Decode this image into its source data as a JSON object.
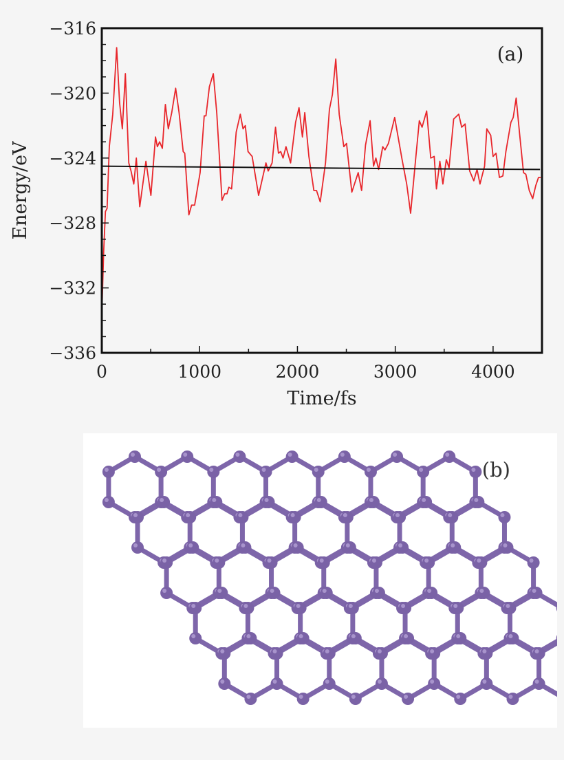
{
  "chart_data": {
    "type": "line",
    "panel_label": "(a)",
    "xlabel": "Time/fs",
    "ylabel": "Energy/eV",
    "xlim": [
      0,
      4500
    ],
    "ylim": [
      -336,
      -316
    ],
    "xticks": [
      0,
      1000,
      2000,
      3000,
      4000
    ],
    "xtick_labels": [
      "0",
      "1000",
      "2000",
      "3000",
      "4000"
    ],
    "yticks": [
      -316,
      -320,
      -324,
      -328,
      -332,
      -336
    ],
    "ytick_labels": [
      "−316",
      "−320",
      "−324",
      "−328",
      "−332",
      "−336"
    ],
    "grid": false,
    "series": [
      {
        "color": "#e8262b",
        "points": [
          [
            0,
            -333.7
          ],
          [
            19,
            -329.8
          ],
          [
            37,
            -327.3
          ],
          [
            54,
            -327.1
          ],
          [
            77,
            -323.3
          ],
          [
            112,
            -321.3
          ],
          [
            152,
            -317.2
          ],
          [
            182,
            -320.6
          ],
          [
            210,
            -322.2
          ],
          [
            241,
            -318.8
          ],
          [
            276,
            -324.3
          ],
          [
            299,
            -324.8
          ],
          [
            327,
            -325.6
          ],
          [
            353,
            -324.0
          ],
          [
            388,
            -327.0
          ],
          [
            451,
            -324.2
          ],
          [
            502,
            -326.3
          ],
          [
            549,
            -322.7
          ],
          [
            568,
            -323.3
          ],
          [
            591,
            -323.0
          ],
          [
            619,
            -323.4
          ],
          [
            650,
            -320.7
          ],
          [
            680,
            -322.2
          ],
          [
            715,
            -321.2
          ],
          [
            755,
            -319.7
          ],
          [
            790,
            -321.2
          ],
          [
            832,
            -323.6
          ],
          [
            848,
            -323.7
          ],
          [
            890,
            -327.5
          ],
          [
            918,
            -326.9
          ],
          [
            949,
            -326.9
          ],
          [
            1005,
            -324.9
          ],
          [
            1047,
            -321.4
          ],
          [
            1065,
            -321.4
          ],
          [
            1100,
            -319.6
          ],
          [
            1140,
            -318.8
          ],
          [
            1175,
            -321.2
          ],
          [
            1229,
            -326.6
          ],
          [
            1257,
            -326.2
          ],
          [
            1280,
            -326.2
          ],
          [
            1299,
            -325.8
          ],
          [
            1327,
            -325.9
          ],
          [
            1374,
            -322.4
          ],
          [
            1416,
            -321.3
          ],
          [
            1444,
            -322.2
          ],
          [
            1467,
            -322.0
          ],
          [
            1495,
            -323.6
          ],
          [
            1537,
            -323.9
          ],
          [
            1603,
            -326.3
          ],
          [
            1678,
            -324.3
          ],
          [
            1701,
            -324.8
          ],
          [
            1741,
            -324.3
          ],
          [
            1776,
            -322.1
          ],
          [
            1806,
            -323.7
          ],
          [
            1829,
            -323.6
          ],
          [
            1853,
            -324.0
          ],
          [
            1883,
            -323.3
          ],
          [
            1930,
            -324.3
          ],
          [
            1981,
            -321.8
          ],
          [
            2016,
            -320.9
          ],
          [
            2051,
            -322.7
          ],
          [
            2075,
            -321.2
          ],
          [
            2117,
            -323.9
          ],
          [
            2168,
            -326.0
          ],
          [
            2195,
            -326.0
          ],
          [
            2233,
            -326.7
          ],
          [
            2287,
            -324.3
          ],
          [
            2327,
            -321.0
          ],
          [
            2357,
            -320.1
          ],
          [
            2392,
            -317.9
          ],
          [
            2427,
            -321.3
          ],
          [
            2474,
            -323.3
          ],
          [
            2502,
            -323.1
          ],
          [
            2556,
            -326.1
          ],
          [
            2621,
            -324.9
          ],
          [
            2656,
            -326.0
          ],
          [
            2696,
            -323.2
          ],
          [
            2743,
            -321.7
          ],
          [
            2778,
            -324.5
          ],
          [
            2802,
            -324.0
          ],
          [
            2830,
            -324.7
          ],
          [
            2872,
            -323.3
          ],
          [
            2895,
            -323.5
          ],
          [
            2930,
            -323.1
          ],
          [
            2994,
            -321.5
          ],
          [
            3070,
            -324.1
          ],
          [
            3117,
            -325.6
          ],
          [
            3157,
            -327.4
          ],
          [
            3211,
            -323.9
          ],
          [
            3246,
            -321.7
          ],
          [
            3274,
            -322.1
          ],
          [
            3321,
            -321.1
          ],
          [
            3363,
            -324.0
          ],
          [
            3398,
            -323.9
          ],
          [
            3421,
            -325.9
          ],
          [
            3456,
            -324.2
          ],
          [
            3487,
            -325.6
          ],
          [
            3522,
            -324.1
          ],
          [
            3550,
            -324.6
          ],
          [
            3597,
            -321.6
          ],
          [
            3649,
            -321.3
          ],
          [
            3679,
            -322.1
          ],
          [
            3714,
            -321.9
          ],
          [
            3761,
            -324.8
          ],
          [
            3803,
            -325.4
          ],
          [
            3836,
            -324.7
          ],
          [
            3866,
            -325.6
          ],
          [
            3913,
            -324.5
          ],
          [
            3936,
            -322.2
          ],
          [
            3976,
            -322.6
          ],
          [
            4000,
            -323.9
          ],
          [
            4030,
            -323.7
          ],
          [
            4065,
            -325.2
          ],
          [
            4100,
            -325.1
          ],
          [
            4131,
            -323.6
          ],
          [
            4182,
            -321.8
          ],
          [
            4206,
            -321.5
          ],
          [
            4236,
            -320.3
          ],
          [
            4271,
            -322.5
          ],
          [
            4311,
            -324.9
          ],
          [
            4335,
            -325.0
          ],
          [
            4370,
            -326.0
          ],
          [
            4405,
            -326.5
          ],
          [
            4436,
            -325.7
          ],
          [
            4464,
            -325.2
          ],
          [
            4487,
            -325.2
          ]
        ]
      },
      {
        "color": "#111111",
        "points": [
          [
            0,
            -324.5
          ],
          [
            1000,
            -324.55
          ],
          [
            2000,
            -324.6
          ],
          [
            3000,
            -324.65
          ],
          [
            4480,
            -324.7
          ]
        ]
      }
    ]
  },
  "structure": {
    "panel_label": "(b)",
    "atom_color": "#7a62a6",
    "bond_color": "#7e66aa"
  }
}
